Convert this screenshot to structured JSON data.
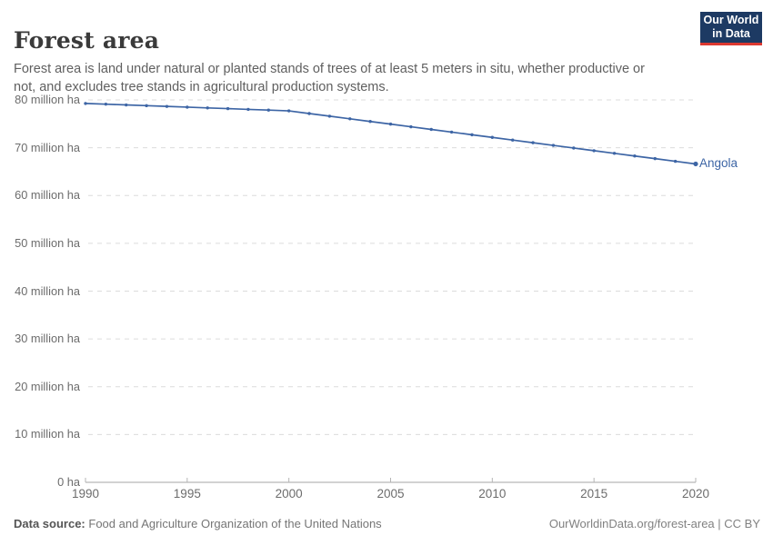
{
  "header": {
    "title": "Forest area",
    "subtitle": "Forest area is land under natural or planted stands of trees of at least 5 meters in situ, whether productive or not, and excludes tree stands in agricultural production systems.",
    "logo": {
      "line1": "Our World",
      "line2": "in Data",
      "bg_color": "#1d3a63",
      "stripe_color": "#dc3830"
    }
  },
  "chart_data": {
    "type": "line",
    "title": "Forest area",
    "unit": "million ha",
    "x": [
      1990,
      1991,
      1992,
      1993,
      1994,
      1995,
      1996,
      1997,
      1998,
      1999,
      2000,
      2001,
      2002,
      2003,
      2004,
      2005,
      2006,
      2007,
      2008,
      2009,
      2010,
      2011,
      2012,
      2013,
      2014,
      2015,
      2016,
      2017,
      2018,
      2019,
      2020
    ],
    "series": [
      {
        "name": "Angola",
        "color": "#3d65a5",
        "values": [
          79.26,
          79.11,
          78.95,
          78.8,
          78.64,
          78.49,
          78.33,
          78.18,
          78.02,
          77.87,
          77.71,
          77.15,
          76.6,
          76.05,
          75.49,
          74.94,
          74.38,
          73.83,
          73.27,
          72.71,
          72.16,
          71.6,
          71.05,
          70.49,
          69.94,
          69.38,
          68.83,
          68.27,
          67.72,
          67.16,
          66.61
        ],
        "end_label": "Angola"
      }
    ],
    "xlim": [
      1990,
      2020
    ],
    "ylim": [
      0,
      80
    ],
    "y_ticks": [
      {
        "value": 80,
        "label": "80 million ha"
      },
      {
        "value": 70,
        "label": "70 million ha"
      },
      {
        "value": 60,
        "label": "60 million ha"
      },
      {
        "value": 50,
        "label": "50 million ha"
      },
      {
        "value": 40,
        "label": "40 million ha"
      },
      {
        "value": 30,
        "label": "30 million ha"
      },
      {
        "value": 20,
        "label": "20 million ha"
      },
      {
        "value": 10,
        "label": "10 million ha"
      },
      {
        "value": 0,
        "label": "0 ha"
      }
    ],
    "x_ticks": [
      1990,
      1995,
      2000,
      2005,
      2010,
      2015,
      2020
    ],
    "grid": "horizontal-dashed",
    "gridline_color": "#dcdcdc",
    "axis_color": "#a6a6a6",
    "legend_position": "end-of-line"
  },
  "footer": {
    "source_label": "Data source:",
    "source_text": "Food and Agriculture Organization of the United Nations",
    "link_text": "OurWorldinData.org/forest-area | CC BY"
  }
}
